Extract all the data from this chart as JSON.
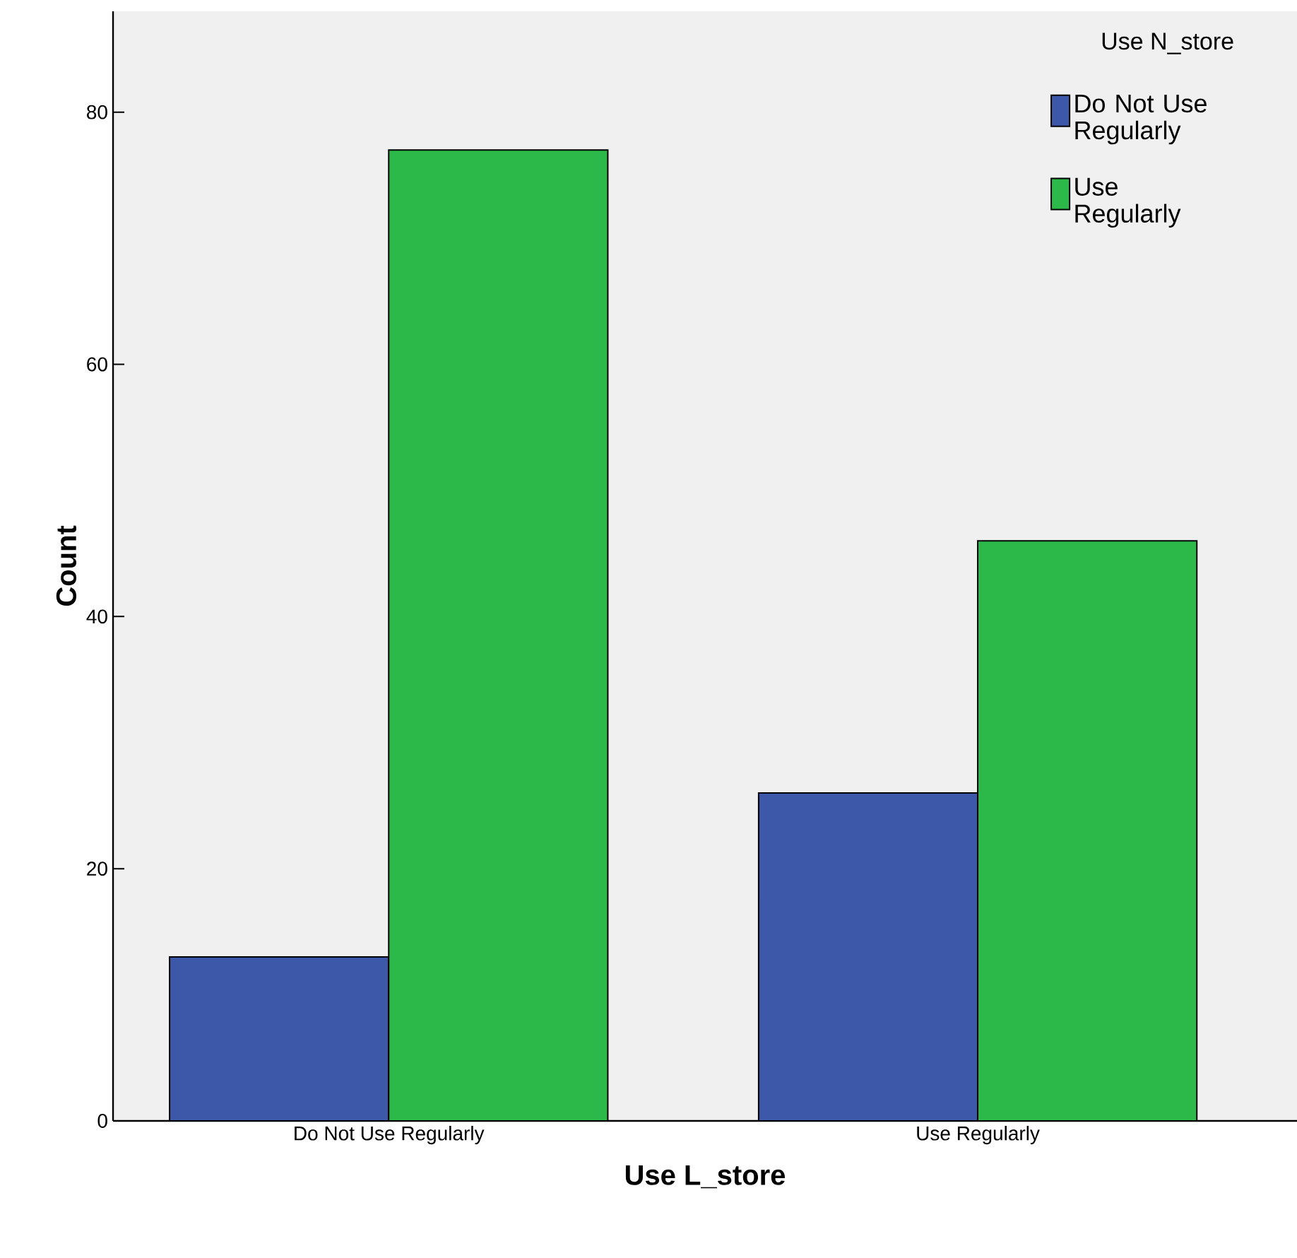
{
  "chart_data": {
    "type": "bar",
    "xlabel": "Use L_store",
    "ylabel": "Count",
    "legend_title": "Use N_store",
    "categories": [
      "Do Not Use Regularly",
      "Use Regularly"
    ],
    "series": [
      {
        "name": "Do Not Use Regularly",
        "color": "#3d58a8",
        "values": [
          13,
          26
        ]
      },
      {
        "name": "Use Regularly",
        "color": "#2db84a",
        "values": [
          77,
          46
        ]
      }
    ],
    "ylim": [
      0,
      88
    ],
    "yticks": [
      0,
      20,
      40,
      60,
      80
    ],
    "legend": "top right"
  }
}
